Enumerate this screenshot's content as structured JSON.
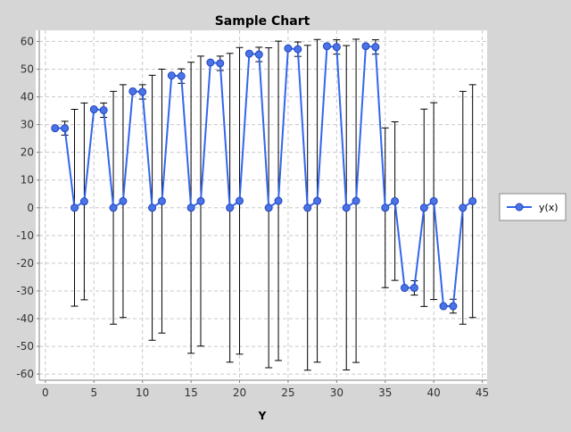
{
  "chart_data": {
    "type": "line",
    "title": "Sample Chart",
    "xlabel": "Y",
    "ylabel": "",
    "xlim": [
      -1,
      45.5
    ],
    "ylim": [
      -63.5,
      64
    ],
    "x_ticks": [
      0,
      5,
      10,
      15,
      20,
      25,
      30,
      35,
      40,
      45
    ],
    "y_ticks": [
      -60,
      -50,
      -40,
      -30,
      -20,
      -10,
      0,
      10,
      20,
      30,
      40,
      50,
      60
    ],
    "grid": true,
    "legend_position": "right",
    "colors": {
      "series": "#3366ee",
      "marker": "#4a73e8",
      "marker_edge": "#2244bb",
      "error_bar": "#000000",
      "plot_bg": "#ffffff",
      "gridline": "#c8c8c8",
      "page_bg": "#d6d6d6"
    },
    "series": [
      {
        "name": "y(x)",
        "points": [
          {
            "x": 1,
            "y": 28.7,
            "err": 0
          },
          {
            "x": 2,
            "y": 28.7,
            "err": 2.5
          },
          {
            "x": 3,
            "y": 0,
            "err": 35.5
          },
          {
            "x": 4,
            "y": 2.3,
            "err": 35.5
          },
          {
            "x": 5,
            "y": 35.5,
            "err": 0
          },
          {
            "x": 6,
            "y": 35.2,
            "err": 2.6
          },
          {
            "x": 7,
            "y": 0,
            "err": 42
          },
          {
            "x": 8,
            "y": 2.4,
            "err": 42
          },
          {
            "x": 9,
            "y": 42,
            "err": 0
          },
          {
            "x": 10,
            "y": 41.8,
            "err": 2.6
          },
          {
            "x": 11,
            "y": 0,
            "err": 47.8
          },
          {
            "x": 12,
            "y": 2.4,
            "err": 47.6
          },
          {
            "x": 13,
            "y": 47.7,
            "err": 0
          },
          {
            "x": 14,
            "y": 47.5,
            "err": 2.6
          },
          {
            "x": 15,
            "y": 0,
            "err": 52.5
          },
          {
            "x": 16,
            "y": 2.4,
            "err": 52.3
          },
          {
            "x": 17,
            "y": 52.4,
            "err": 0
          },
          {
            "x": 18,
            "y": 52.1,
            "err": 2.6
          },
          {
            "x": 19,
            "y": 0,
            "err": 55.7
          },
          {
            "x": 20,
            "y": 2.5,
            "err": 55.3
          },
          {
            "x": 21,
            "y": 55.6,
            "err": 0
          },
          {
            "x": 22,
            "y": 55.3,
            "err": 2.6
          },
          {
            "x": 23,
            "y": 0,
            "err": 57.7
          },
          {
            "x": 24,
            "y": 2.5,
            "err": 57.6
          },
          {
            "x": 25,
            "y": 57.5,
            "err": 0
          },
          {
            "x": 26,
            "y": 57.2,
            "err": 2.6
          },
          {
            "x": 27,
            "y": 0,
            "err": 58.6
          },
          {
            "x": 28,
            "y": 2.5,
            "err": 58.2
          },
          {
            "x": 29,
            "y": 58.3,
            "err": 0
          },
          {
            "x": 30,
            "y": 58.0,
            "err": 2.6
          },
          {
            "x": 31,
            "y": 0,
            "err": 58.5
          },
          {
            "x": 32,
            "y": 2.5,
            "err": 58.3
          },
          {
            "x": 33,
            "y": 58.3,
            "err": 0
          },
          {
            "x": 34,
            "y": 58.0,
            "err": 2.6
          },
          {
            "x": 35,
            "y": 0,
            "err": 28.8
          },
          {
            "x": 36,
            "y": 2.4,
            "err": 28.6
          },
          {
            "x": 37,
            "y": -28.9,
            "err": 0
          },
          {
            "x": 38,
            "y": -28.9,
            "err": 2.6
          },
          {
            "x": 39,
            "y": 0,
            "err": 35.6
          },
          {
            "x": 40,
            "y": 2.4,
            "err": 35.5
          },
          {
            "x": 41,
            "y": -35.5,
            "err": 0
          },
          {
            "x": 42,
            "y": -35.5,
            "err": 2.5
          },
          {
            "x": 43,
            "y": 0,
            "err": 42
          },
          {
            "x": 44,
            "y": 2.4,
            "err": 42
          }
        ]
      }
    ]
  }
}
